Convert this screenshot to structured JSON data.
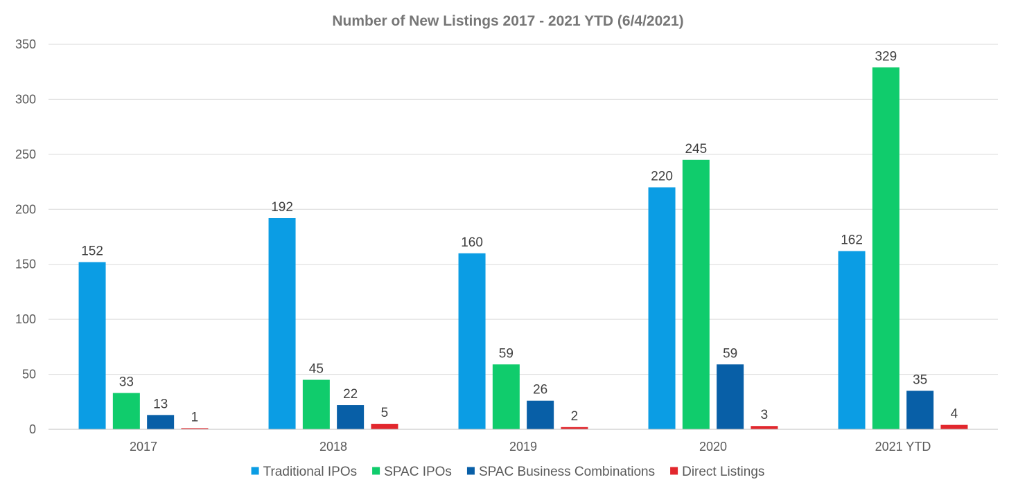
{
  "chart_data": {
    "type": "bar",
    "title": "Number of New Listings 2017 - 2021 YTD (6/4/2021)",
    "categories": [
      "2017",
      "2018",
      "2019",
      "2020",
      "2021 YTD"
    ],
    "series": [
      {
        "name": "Traditional IPOs",
        "color": "#0b9de4",
        "values": [
          152,
          192,
          160,
          220,
          162
        ]
      },
      {
        "name": "SPAC IPOs",
        "color": "#10cc6c",
        "values": [
          33,
          45,
          59,
          245,
          329
        ]
      },
      {
        "name": "SPAC Business Combinations",
        "color": "#085fa7",
        "values": [
          13,
          22,
          26,
          59,
          35
        ]
      },
      {
        "name": "Direct Listings",
        "color": "#e2272d",
        "values": [
          1,
          5,
          2,
          3,
          4
        ]
      }
    ],
    "xlabel": "",
    "ylabel": "",
    "ylim": [
      0,
      350
    ],
    "yticks": [
      0,
      50,
      100,
      150,
      200,
      250,
      300,
      350
    ],
    "grid": true,
    "legend_position": "bottom",
    "data_labels": true
  }
}
